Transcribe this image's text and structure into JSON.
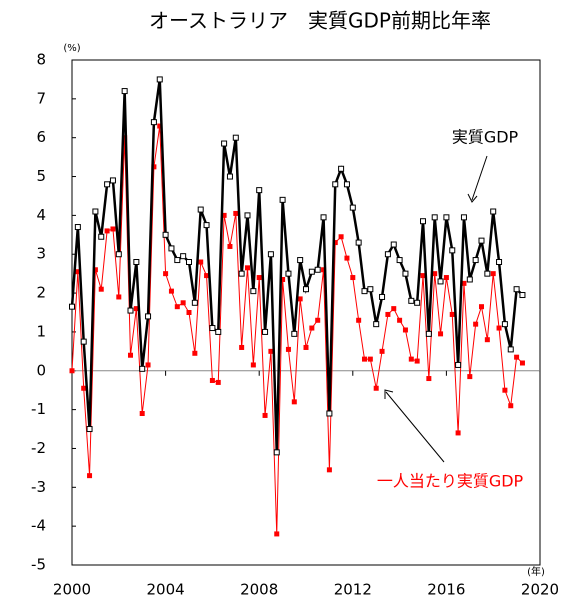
{
  "chart_data": {
    "type": "line",
    "title": "オーストラリア　実質GDP前期比年率",
    "y_unit_label": "(%)",
    "x_unit_label": "(年)",
    "annotations": [
      "実質GDP",
      "一人当たり実質GDP"
    ],
    "x": [
      2000,
      2000.25,
      2000.5,
      2000.75,
      2001,
      2001.25,
      2001.5,
      2001.75,
      2002,
      2002.25,
      2002.5,
      2002.75,
      2003,
      2003.25,
      2003.5,
      2003.75,
      2004,
      2004.25,
      2004.5,
      2004.75,
      2005,
      2005.25,
      2005.5,
      2005.75,
      2006,
      2006.25,
      2006.5,
      2006.75,
      2007,
      2007.25,
      2007.5,
      2007.75,
      2008,
      2008.25,
      2008.5,
      2008.75,
      2009,
      2009.25,
      2009.5,
      2009.75,
      2010,
      2010.25,
      2010.5,
      2010.75,
      2011,
      2011.25,
      2011.5,
      2011.75,
      2012,
      2012.25,
      2012.5,
      2012.75,
      2013,
      2013.25,
      2013.5,
      2013.75,
      2014,
      2014.25,
      2014.5,
      2014.75,
      2015,
      2015.25,
      2015.5,
      2015.75,
      2016,
      2016.25,
      2016.5,
      2016.75,
      2017,
      2017.25,
      2017.5,
      2017.75,
      2018,
      2018.25,
      2018.5,
      2018.75,
      2019,
      2019.25
    ],
    "series": [
      {
        "name": "実質GDP",
        "color": "#000000",
        "marker": "open-square",
        "values": [
          1.65,
          3.7,
          0.75,
          -1.5,
          4.1,
          3.45,
          4.8,
          4.9,
          3.0,
          7.2,
          1.55,
          2.8,
          0.05,
          1.4,
          6.4,
          7.5,
          3.5,
          3.15,
          2.85,
          2.95,
          2.8,
          1.75,
          4.15,
          3.75,
          1.1,
          1.0,
          5.85,
          5.0,
          6.0,
          2.5,
          4.0,
          2.05,
          4.65,
          1.0,
          3.0,
          -2.1,
          4.4,
          2.5,
          0.95,
          2.85,
          2.1,
          2.55,
          2.6,
          3.95,
          -1.1,
          4.8,
          5.2,
          4.8,
          4.2,
          3.3,
          2.05,
          2.1,
          1.2,
          1.9,
          3.0,
          3.25,
          2.85,
          2.5,
          1.8,
          1.75,
          3.85,
          0.95,
          3.95,
          2.3,
          3.95,
          3.1,
          0.15,
          3.95,
          2.35,
          2.85,
          3.35,
          2.5,
          4.1,
          2.8,
          1.2,
          0.55,
          2.1,
          1.95
        ]
      },
      {
        "name": "一人当たり実質GDP",
        "color": "#ff0000",
        "marker": "filled-square",
        "values": [
          0.0,
          2.55,
          -0.45,
          -2.7,
          2.6,
          2.1,
          3.6,
          3.65,
          1.9,
          6.0,
          0.4,
          1.6,
          -1.1,
          0.15,
          5.25,
          6.3,
          2.5,
          2.05,
          1.65,
          1.75,
          1.5,
          0.45,
          2.8,
          2.45,
          -0.25,
          -0.3,
          4.0,
          3.2,
          4.05,
          0.6,
          2.65,
          0.15,
          2.4,
          -1.15,
          0.5,
          -4.2,
          2.35,
          0.55,
          -0.8,
          1.85,
          0.6,
          1.1,
          1.3,
          2.6,
          -2.55,
          3.3,
          3.45,
          2.9,
          2.4,
          1.3,
          0.3,
          0.3,
          -0.45,
          0.5,
          1.45,
          1.6,
          1.3,
          1.05,
          0.3,
          0.25,
          2.45,
          -0.2,
          2.5,
          0.95,
          2.4,
          1.45,
          -1.6,
          2.25,
          -0.15,
          1.2,
          1.65,
          0.8,
          2.5,
          1.1,
          -0.5,
          -0.9,
          0.35,
          0.2
        ]
      }
    ],
    "xlim": [
      2000,
      2020
    ],
    "xticks": [
      2000,
      2004,
      2008,
      2012,
      2016,
      2020
    ],
    "ylim": [
      -5,
      8
    ],
    "yticks": [
      -5,
      -4,
      -3,
      -2,
      -1,
      0,
      1,
      2,
      3,
      4,
      5,
      6,
      7,
      8
    ],
    "grid": false
  }
}
